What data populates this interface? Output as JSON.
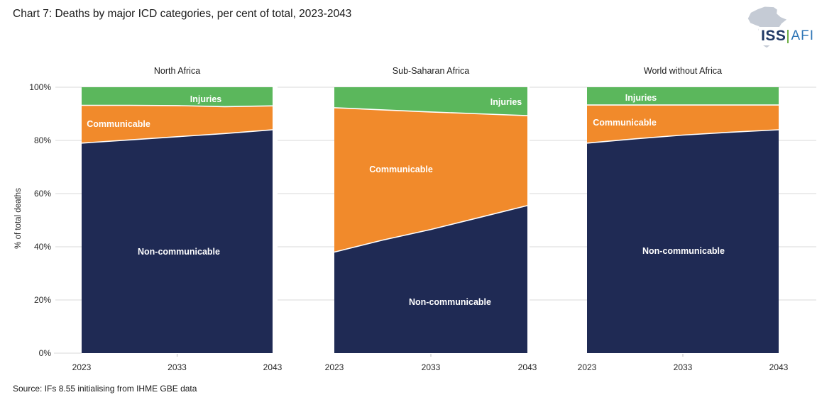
{
  "header": {
    "title": "Chart 7: Deaths by major ICD categories, per cent of total, 2023-2043",
    "logo": {
      "org": "ISS",
      "unit": "AFI",
      "org_color": "#1F3864",
      "unit_color": "#2E75B6",
      "pipe_color": "#6FAE46",
      "africa_color": "#C5CBD5"
    }
  },
  "source": {
    "text": "Source: IFs 8.55 initialising from IHME GBE data"
  },
  "chart_data": {
    "type": "area",
    "stacked": true,
    "title": "Chart 7: Deaths by major ICD categories, per cent of total, 2023-2043",
    "ylabel": "% of total deaths",
    "ylim": [
      0,
      100
    ],
    "grid": true,
    "legend_position": "in-plot-labels",
    "x": [
      2023,
      2028,
      2033,
      2038,
      2043
    ],
    "x_tick_labels": [
      "2023",
      "2033",
      "2043"
    ],
    "y_tick_labels": [
      "0%",
      "20%",
      "40%",
      "60%",
      "80%",
      "100%"
    ],
    "colors": {
      "Non-communicable": "#1F2A54",
      "Communicable": "#F18A2B",
      "Injuries": "#5BB75C",
      "gridline": "#D9D9D9",
      "boundary": "#FFFFFF"
    },
    "panels": [
      {
        "title": "North Africa",
        "series": [
          {
            "name": "Non-communicable",
            "values": [
              79.0,
              80.2,
              81.4,
              82.6,
              84.0
            ]
          },
          {
            "name": "Communicable",
            "values": [
              14.2,
              13.0,
              11.7,
              10.1,
              9.0
            ]
          },
          {
            "name": "Injuries",
            "values": [
              6.8,
              6.8,
              6.9,
              7.3,
              7.0
            ]
          }
        ]
      },
      {
        "title": "Sub-Saharan Africa",
        "series": [
          {
            "name": "Non-communicable",
            "values": [
              38.0,
              42.5,
              46.5,
              51.0,
              55.5
            ]
          },
          {
            "name": "Communicable",
            "values": [
              54.3,
              49.0,
              44.2,
              39.0,
              33.8
            ]
          },
          {
            "name": "Injuries",
            "values": [
              7.7,
              8.5,
              9.3,
              10.0,
              10.7
            ]
          }
        ]
      },
      {
        "title": "World without Africa",
        "series": [
          {
            "name": "Non-communicable",
            "values": [
              79.0,
              80.6,
              82.0,
              83.1,
              84.0
            ]
          },
          {
            "name": "Communicable",
            "values": [
              14.3,
              12.7,
              11.3,
              10.2,
              9.3
            ]
          },
          {
            "name": "Injuries",
            "values": [
              6.7,
              6.7,
              6.7,
              6.7,
              6.7
            ]
          }
        ]
      }
    ]
  }
}
